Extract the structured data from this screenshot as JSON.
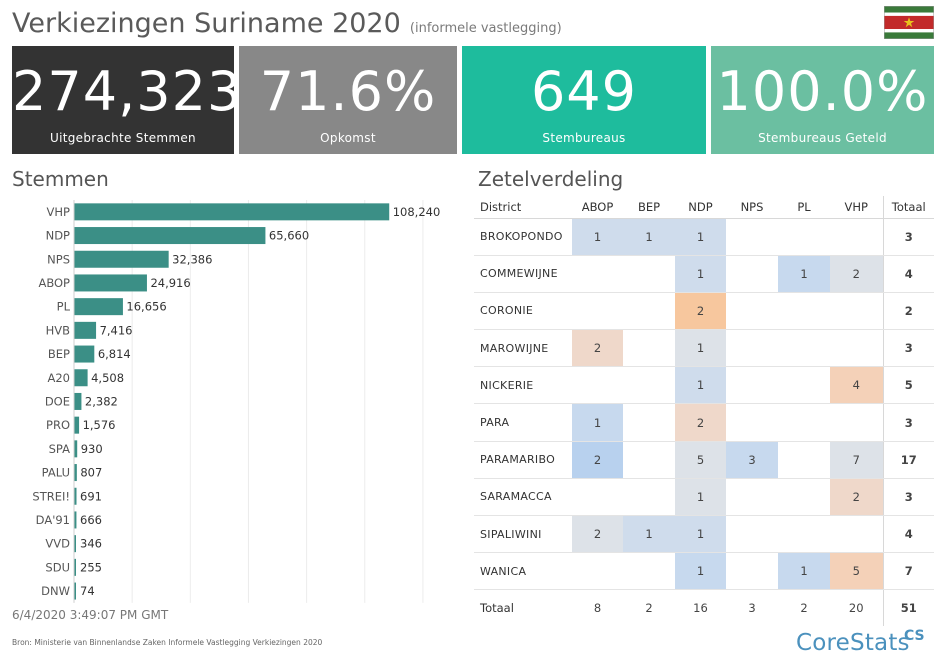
{
  "header": {
    "title": "Verkiezingen Suriname 2020",
    "subtitle": "(informele vastlegging)"
  },
  "flag": {
    "colors": {
      "green": "#3a7a3a",
      "white": "#ffffff",
      "red": "#c22a2a",
      "star": "#e8c21c"
    }
  },
  "kpis": [
    {
      "value": "274,323",
      "label": "Uitgebrachte Stemmen",
      "color": "#333333"
    },
    {
      "value": "71.6%",
      "label": "Opkomst",
      "color": "#888888"
    },
    {
      "value": "649",
      "label": "Stembureaus",
      "color": "#1ebc9d"
    },
    {
      "value": "100.0%",
      "label": "Stembureaus Geteld",
      "color": "#6bbfa1"
    }
  ],
  "votes_title": "Stemmen",
  "seats_title": "Zetelverdeling",
  "chart_data": {
    "type": "bar",
    "orientation": "horizontal",
    "categories": [
      "VHP",
      "NDP",
      "NPS",
      "ABOP",
      "PL",
      "HVB",
      "BEP",
      "A20",
      "DOE",
      "PRO",
      "SPA",
      "PALU",
      "STREI!",
      "DA'91",
      "VVD",
      "SDU",
      "DNW"
    ],
    "values": [
      108240,
      65660,
      32386,
      24916,
      16656,
      7416,
      6814,
      4508,
      2382,
      1576,
      930,
      807,
      691,
      666,
      346,
      255,
      74
    ],
    "value_labels": [
      "108,240",
      "65,660",
      "32,386",
      "24,916",
      "16,656",
      "7,416",
      "6,814",
      "4,508",
      "2,382",
      "1,576",
      "930",
      "807",
      "691",
      "666",
      "346",
      "255",
      "74"
    ],
    "xlim": [
      0,
      130000
    ],
    "gridlines": [
      0,
      20000,
      40000,
      60000,
      80000,
      100000,
      120000
    ],
    "bar_color": "#3b8f86",
    "grid": true
  },
  "timestamp": "6/4/2020 3:49:07 PM GMT",
  "source": "Bron: Ministerie van Binnenlandse Zaken Informele Vastlegging Verkiezingen 2020",
  "seat_table": {
    "headers": [
      "District",
      "ABOP",
      "BEP",
      "NDP",
      "NPS",
      "PL",
      "VHP",
      "Totaal"
    ],
    "rows": [
      {
        "district": "BROKOPONDO",
        "cells": [
          "1",
          "1",
          "1",
          "",
          "",
          ""
        ],
        "total": "3"
      },
      {
        "district": "COMMEWIJNE",
        "cells": [
          "",
          "",
          "1",
          "",
          "1",
          "2"
        ],
        "total": "4"
      },
      {
        "district": "CORONIE",
        "cells": [
          "",
          "",
          "2",
          "",
          "",
          ""
        ],
        "total": "2"
      },
      {
        "district": "MAROWIJNE",
        "cells": [
          "2",
          "",
          "1",
          "",
          "",
          ""
        ],
        "total": "3"
      },
      {
        "district": "NICKERIE",
        "cells": [
          "",
          "",
          "1",
          "",
          "",
          "4"
        ],
        "total": "5"
      },
      {
        "district": "PARA",
        "cells": [
          "1",
          "",
          "2",
          "",
          "",
          ""
        ],
        "total": "3"
      },
      {
        "district": "PARAMARIBO",
        "cells": [
          "2",
          "",
          "5",
          "3",
          "",
          "7"
        ],
        "total": "17"
      },
      {
        "district": "SARAMACCA",
        "cells": [
          "",
          "",
          "1",
          "",
          "",
          "2"
        ],
        "total": "3"
      },
      {
        "district": "SIPALIWINI",
        "cells": [
          "2",
          "1",
          "1",
          "",
          "",
          ""
        ],
        "total": "4"
      },
      {
        "district": "WANICA",
        "cells": [
          "",
          "",
          "1",
          "",
          "1",
          "5"
        ],
        "total": "7"
      }
    ],
    "total_row": {
      "label": "Totaal",
      "cells": [
        "8",
        "2",
        "16",
        "3",
        "2",
        "20"
      ],
      "total": "51"
    },
    "cell_colors": [
      [
        "#cfdcec",
        "#cfdcec",
        "#cfdcec",
        "",
        "",
        ""
      ],
      [
        "",
        "",
        "#cfdcec",
        "",
        "#c7d9ee",
        "#dde2e8"
      ],
      [
        "",
        "",
        "#f7c79e",
        "",
        "",
        ""
      ],
      [
        "#efd8ca",
        "",
        "#dde2e8",
        "",
        "",
        ""
      ],
      [
        "",
        "",
        "#cfdcec",
        "",
        "",
        "#f4d1b8"
      ],
      [
        "#c7d9ee",
        "",
        "#efd8ca",
        "",
        "",
        ""
      ],
      [
        "#b8d1ee",
        "",
        "#dde2e8",
        "#c7d9ee",
        "",
        "#dde2e8"
      ],
      [
        "",
        "",
        "#dde2e8",
        "",
        "",
        "#efd8ca"
      ],
      [
        "#dde2e8",
        "#cfdcec",
        "#cfdcec",
        "",
        "",
        ""
      ],
      [
        "",
        "",
        "#c7d9ee",
        "",
        "#c7d9ee",
        "#f4d1b8"
      ]
    ]
  },
  "logo": {
    "text": "CoreStats",
    "mark": "CS"
  }
}
